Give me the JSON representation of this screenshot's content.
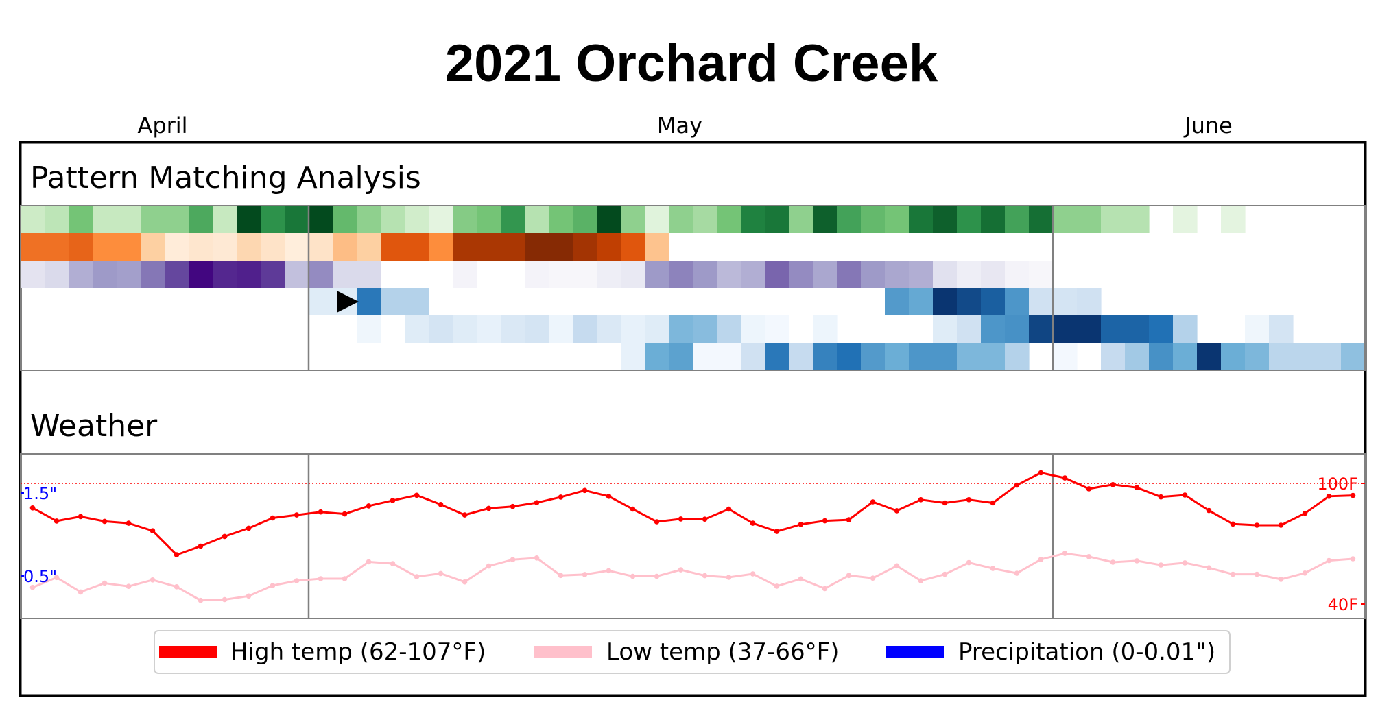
{
  "chart_data": {
    "type": "heatmap",
    "title": "2021 Orchard Creek",
    "month_labels": [
      "April",
      "May",
      "June"
    ],
    "sections": {
      "pattern": "Pattern Matching Analysis",
      "weather": "Weather"
    },
    "heatmap": {
      "rows": [
        {
          "colormap": "Greens",
          "color_stops": [
            "#f7fcf5",
            "#c7e9c0",
            "#74c476",
            "#238b45",
            "#00441b"
          ],
          "values": [
            0.22,
            0.28,
            0.5,
            0.25,
            0.25,
            0.42,
            0.42,
            0.62,
            0.25,
            0.98,
            0.72,
            0.82,
            0.98,
            0.55,
            0.42,
            0.3,
            0.2,
            0.1,
            0.45,
            0.5,
            0.7,
            0.3,
            0.5,
            0.58,
            0.98,
            0.42,
            0.12,
            0.42,
            0.35,
            0.5,
            0.78,
            0.82,
            0.42,
            0.9,
            0.65,
            0.55,
            0.5,
            0.82,
            0.9,
            0.72,
            0.85,
            0.65,
            0.85,
            0.42,
            0.42,
            0.3,
            0.3,
            0,
            0.1,
            0,
            0.1,
            0,
            0,
            0,
            0,
            0
          ]
        },
        {
          "colormap": "Oranges",
          "color_stops": [
            "#fff5eb",
            "#fdd0a2",
            "#fd8d3c",
            "#d94801",
            "#7f2704"
          ],
          "values": [
            0.6,
            0.6,
            0.65,
            0.5,
            0.5,
            0.25,
            0.06,
            0.1,
            0.08,
            0.2,
            0.12,
            0.05,
            0.12,
            0.32,
            0.25,
            0.7,
            0.7,
            0.5,
            0.88,
            0.88,
            0.88,
            0.98,
            0.98,
            0.9,
            0.82,
            0.7,
            0.3,
            0,
            0,
            0,
            0,
            0,
            0,
            0,
            0,
            0,
            0,
            0,
            0,
            0,
            0,
            0,
            0,
            0,
            0,
            0,
            0,
            0,
            0,
            0,
            0,
            0,
            0,
            0,
            0,
            0
          ]
        },
        {
          "colormap": "Purples",
          "color_stops": [
            "#fcfbfd",
            "#dadaeb",
            "#9e9ac8",
            "#6a51a3",
            "#3f007d"
          ],
          "values": [
            0.18,
            0.25,
            0.42,
            0.5,
            0.48,
            0.62,
            0.78,
            0.98,
            0.88,
            0.9,
            0.82,
            0.35,
            0.55,
            0.25,
            0.25,
            0,
            0,
            0,
            0.06,
            0,
            0,
            0.06,
            0.04,
            0.04,
            0.1,
            0.14,
            0.5,
            0.58,
            0.5,
            0.38,
            0.42,
            0.68,
            0.55,
            0.45,
            0.62,
            0.5,
            0.45,
            0.42,
            0.2,
            0.1,
            0.15,
            0.06,
            0.04,
            0,
            0,
            0,
            0,
            0,
            0,
            0,
            0,
            0,
            0,
            0,
            0,
            0
          ]
        },
        {
          "colormap": "Blues",
          "color_stops": [
            "#f7fbff",
            "#c6dbef",
            "#6baed6",
            "#2171b5",
            "#08306b"
          ],
          "values": [
            0,
            0,
            0,
            0,
            0,
            0,
            0,
            0,
            0,
            0,
            0,
            0,
            0.12,
            0.12,
            0.72,
            0.3,
            0.3,
            0,
            0,
            0,
            0,
            0,
            0,
            0,
            0,
            0,
            0,
            0,
            0,
            0,
            0,
            0,
            0,
            0,
            0,
            0,
            0.58,
            0.52,
            0.98,
            0.9,
            0.82,
            0.6,
            0.2,
            0.18,
            0.2,
            0,
            0,
            0,
            0,
            0,
            0,
            0,
            0,
            0,
            0,
            0
          ]
        },
        {
          "colormap": "Blues",
          "color_stops": [
            "#f7fbff",
            "#c6dbef",
            "#6baed6",
            "#2171b5",
            "#08306b"
          ],
          "values": [
            0,
            0,
            0,
            0,
            0,
            0,
            0,
            0,
            0,
            0,
            0,
            0,
            0,
            0,
            0.04,
            0,
            0.12,
            0.18,
            0.12,
            0.08,
            0.15,
            0.18,
            0.05,
            0.25,
            0.15,
            0.08,
            0.12,
            0.45,
            0.42,
            0.28,
            0.05,
            0.02,
            0,
            0.05,
            0,
            0,
            0,
            0,
            0.12,
            0.2,
            0.6,
            0.62,
            0.92,
            0.98,
            0.98,
            0.8,
            0.8,
            0.75,
            0.3,
            0,
            0,
            0.04,
            0.18,
            0,
            0,
            0
          ]
        },
        {
          "colormap": "Blues",
          "color_stops": [
            "#f7fbff",
            "#c6dbef",
            "#6baed6",
            "#2171b5",
            "#08306b"
          ],
          "values": [
            0,
            0,
            0,
            0,
            0,
            0,
            0,
            0,
            0,
            0,
            0,
            0,
            0,
            0,
            0,
            0,
            0,
            0,
            0,
            0,
            0,
            0,
            0,
            0,
            0,
            0.08,
            0.5,
            0.55,
            0.02,
            0.02,
            0.2,
            0.72,
            0.25,
            0.68,
            0.75,
            0.58,
            0.5,
            0.6,
            0.6,
            0.45,
            0.45,
            0.3,
            0,
            0.02,
            0,
            0.25,
            0.35,
            0.62,
            0.5,
            0.98,
            0.5,
            0.45,
            0.28,
            0.28,
            0.28,
            0.4
          ]
        }
      ],
      "marker_row": 3,
      "marker_col": 13
    },
    "weather": {
      "days": 56,
      "high_temp": [
        87.8,
        81.3,
        83.5,
        81.1,
        80.2,
        76.4,
        64.5,
        68.8,
        73.6,
        77.7,
        82.8,
        84.3,
        85.8,
        84.8,
        88.8,
        91.5,
        94.1,
        89.5,
        84.3,
        87.6,
        88.5,
        90.4,
        93.2,
        96.5,
        93.6,
        87.2,
        80.9,
        82.3,
        82.2,
        87.2,
        80.2,
        76.1,
        79.6,
        81.4,
        81.9,
        90.8,
        86.4,
        91.9,
        90.3,
        91.9,
        90.3,
        99.1,
        105.3,
        102.7,
        97.3,
        99.4,
        97.9,
        93.3,
        94.2,
        86.5,
        79.8,
        79.2,
        79.2,
        85.1,
        93.6,
        94.0
      ],
      "low_temp": [
        48.3,
        53.2,
        46.0,
        50.4,
        48.8,
        52.0,
        48.6,
        41.8,
        42.2,
        44.0,
        49.2,
        51.6,
        52.6,
        52.6,
        61.0,
        60.1,
        53.6,
        55.2,
        51.0,
        58.9,
        62.1,
        62.9,
        54.2,
        54.7,
        56.6,
        53.8,
        53.8,
        57.0,
        54.1,
        53.3,
        55.0,
        48.9,
        52.5,
        47.7,
        54.2,
        52.9,
        59.0,
        51.6,
        54.8,
        60.6,
        57.7,
        55.3,
        62.2,
        65.2,
        63.6,
        60.8,
        61.5,
        59.4,
        60.5,
        58.0,
        54.8,
        54.8,
        52.3,
        55.4,
        61.6,
        62.5
      ],
      "temp_axis_labels": [
        "40F",
        "100F"
      ],
      "precip_axis_labels": [
        "0.5\"",
        "1.5\""
      ],
      "reference_line_label": "100F"
    },
    "legend": [
      {
        "label": "High temp (62-107°F)",
        "color": "#ff0000"
      },
      {
        "label": "Low temp (37-66°F)",
        "color": "#ffc0cb"
      },
      {
        "label": "Precipitation (0-0.01\")",
        "color": "#0000ff"
      }
    ],
    "colors": {
      "high_temp": "#ff0000",
      "low_temp": "#ffc0cb",
      "precip": "#0000ff",
      "frame": "#000000",
      "divider": "#808080"
    }
  }
}
